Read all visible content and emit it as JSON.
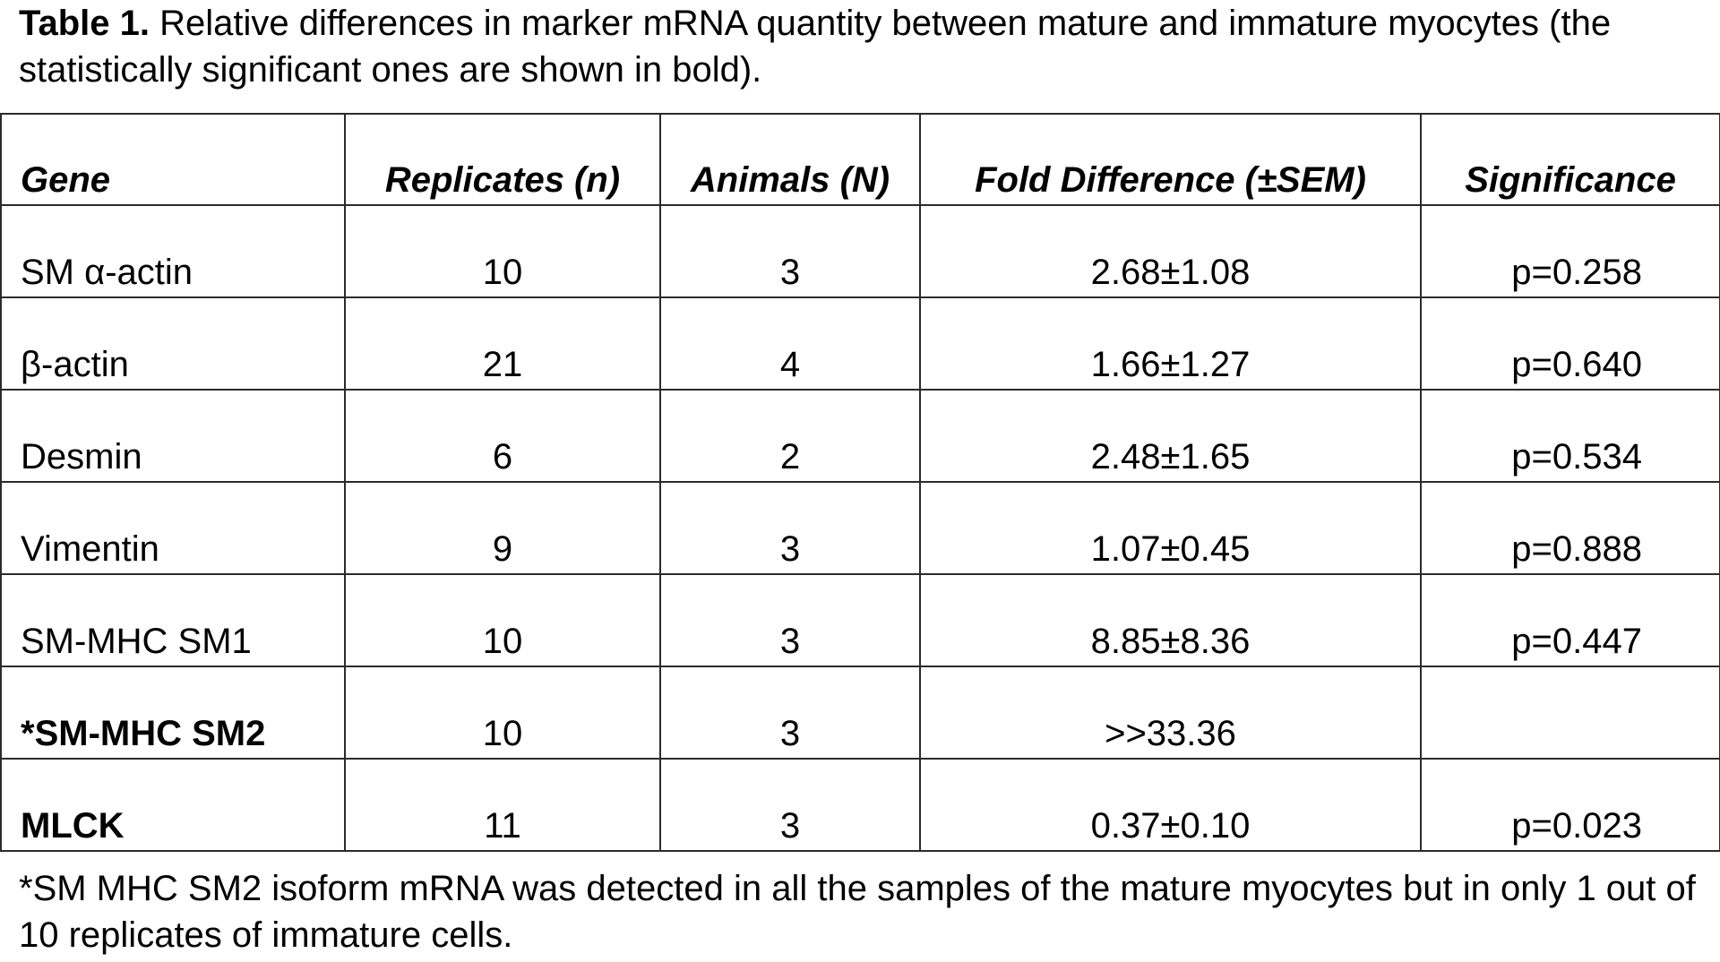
{
  "caption": {
    "label": "Table 1.",
    "text": " Relative differences in marker mRNA quantity between mature and immature myocytes (the statistically significant ones are shown in bold)."
  },
  "table": {
    "headers": [
      "Gene",
      "Replicates (n)",
      "Animals (N)",
      "Fold Difference (±SEM)",
      "Significance"
    ],
    "rows": [
      {
        "gene": "SM α-actin",
        "replicates": "10",
        "animals": "3",
        "fold": "2.68±1.08",
        "significance": "p=0.258",
        "bold": false
      },
      {
        "gene": "β-actin",
        "replicates": "21",
        "animals": "4",
        "fold": "1.66±1.27",
        "significance": "p=0.640",
        "bold": false
      },
      {
        "gene": "Desmin",
        "replicates": "6",
        "animals": "2",
        "fold": "2.48±1.65",
        "significance": "p=0.534",
        "bold": false
      },
      {
        "gene": "Vimentin",
        "replicates": "9",
        "animals": "3",
        "fold": "1.07±0.45",
        "significance": "p=0.888",
        "bold": false
      },
      {
        "gene": "SM-MHC SM1",
        "replicates": "10",
        "animals": "3",
        "fold": "8.85±8.36",
        "significance": "p=0.447",
        "bold": false
      },
      {
        "gene": "*SM-MHC SM2",
        "replicates": "10",
        "animals": "3",
        "fold": ">>33.36",
        "significance": "",
        "bold": true
      },
      {
        "gene": "MLCK",
        "replicates": "11",
        "animals": "3",
        "fold": "0.37±0.10",
        "significance": "p=0.023",
        "bold": true
      }
    ]
  },
  "footnote": "*SM MHC SM2 isoform mRNA was detected in all the samples of the mature myocytes but in only 1 out of 10 replicates of immature cells."
}
